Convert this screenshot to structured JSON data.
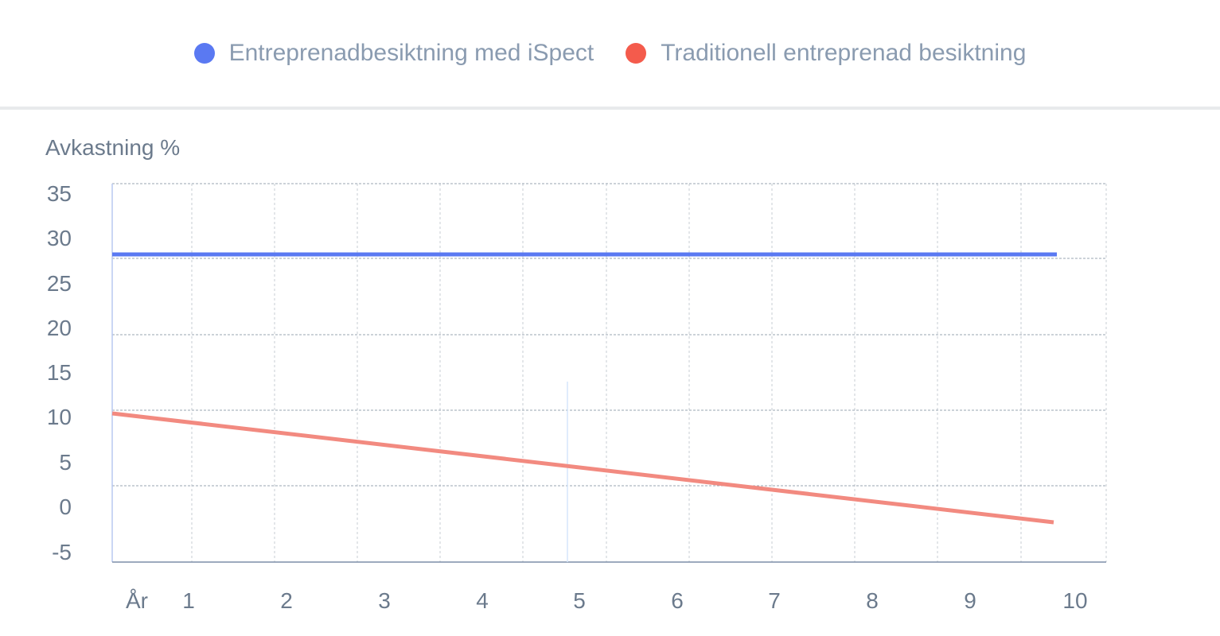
{
  "legend": {
    "items": [
      {
        "label": "Entreprenadbesiktning med iSpect",
        "color": "#5a79f2"
      },
      {
        "label": "Traditionell entreprenad besiktning",
        "color": "#f45b4c"
      }
    ]
  },
  "chart_data": {
    "type": "line",
    "ylabel": "Avkastning %",
    "xlabel": "År",
    "x": [
      0,
      10
    ],
    "xticks": [
      "1",
      "2",
      "3",
      "4",
      "5",
      "6",
      "7",
      "8",
      "9",
      "10"
    ],
    "yticks": [
      "35",
      "30",
      "25",
      "20",
      "15",
      "10",
      "5",
      "0",
      "-5"
    ],
    "ylim": [
      -5,
      35
    ],
    "grid": true,
    "legend_position": "top-center",
    "series": [
      {
        "name": "Entreprenadbesiktning med iSpect",
        "color": "#5a79f2",
        "x": [
          0,
          10
        ],
        "values": [
          29,
          29
        ]
      },
      {
        "name": "Traditionell entreprenad besiktning",
        "color": "#f28a80",
        "x": [
          0,
          10
        ],
        "values": [
          10,
          -1.5
        ]
      }
    ]
  }
}
